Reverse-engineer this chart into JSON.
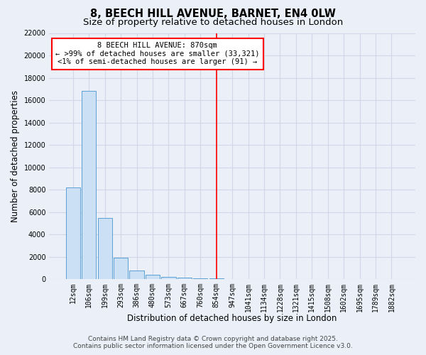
{
  "title": "8, BEECH HILL AVENUE, BARNET, EN4 0LW",
  "subtitle": "Size of property relative to detached houses in London",
  "xlabel": "Distribution of detached houses by size in London",
  "ylabel": "Number of detached properties",
  "footer_line1": "Contains HM Land Registry data © Crown copyright and database right 2025.",
  "footer_line2": "Contains public sector information licensed under the Open Government Licence v3.0.",
  "categories": [
    "12sqm",
    "106sqm",
    "199sqm",
    "293sqm",
    "386sqm",
    "480sqm",
    "573sqm",
    "667sqm",
    "760sqm",
    "854sqm",
    "947sqm",
    "1041sqm",
    "1134sqm",
    "1228sqm",
    "1321sqm",
    "1415sqm",
    "1508sqm",
    "1602sqm",
    "1695sqm",
    "1789sqm",
    "1882sqm"
  ],
  "values": [
    8200,
    16800,
    5500,
    1900,
    750,
    380,
    210,
    160,
    110,
    110,
    0,
    0,
    0,
    0,
    0,
    0,
    0,
    0,
    0,
    0,
    0
  ],
  "bar_color": "#cce0f5",
  "bar_edge_color": "#5a9fd4",
  "red_line_index": 9,
  "ylim": [
    0,
    22000
  ],
  "yticks": [
    0,
    2000,
    4000,
    6000,
    8000,
    10000,
    12000,
    14000,
    16000,
    18000,
    20000,
    22000
  ],
  "annotation_line1": "8 BEECH HILL AVENUE: 870sqm",
  "annotation_line2": "← >99% of detached houses are smaller (33,321)",
  "annotation_line3": "<1% of semi-detached houses are larger (91) →",
  "bg_color": "#eaeff8",
  "grid_color": "#d0d8e8",
  "title_fontsize": 10.5,
  "subtitle_fontsize": 9.5,
  "tick_fontsize": 7,
  "ylabel_fontsize": 8.5,
  "xlabel_fontsize": 8.5,
  "annotation_fontsize": 7.5,
  "footer_fontsize": 6.5
}
